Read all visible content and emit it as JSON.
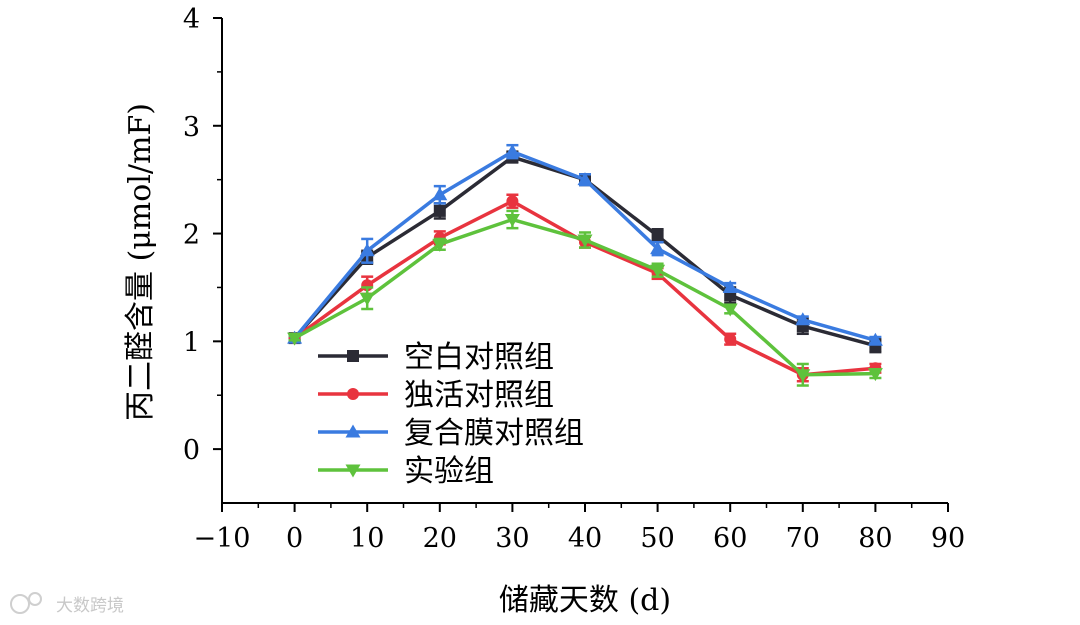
{
  "chart_data": {
    "type": "line",
    "title": "",
    "xlabel": "储藏天数 (d)",
    "ylabel": "丙二醛含量 (μmol/mF)",
    "xlim": [
      -10,
      90
    ],
    "ylim": [
      -0.5,
      4
    ],
    "xticks": [
      "−10",
      "0",
      "10",
      "20",
      "30",
      "40",
      "50",
      "60",
      "70",
      "80",
      "90"
    ],
    "yticks": [
      "0",
      "1",
      "2",
      "3",
      "4"
    ],
    "grid": false,
    "legend_position": "bottom-left",
    "x": [
      0,
      10,
      20,
      30,
      40,
      50,
      60,
      70,
      80
    ],
    "series": [
      {
        "name": "空白对照组",
        "marker": "square",
        "color": "#2b2b35",
        "values": [
          1.03,
          1.78,
          2.21,
          2.71,
          2.5,
          1.98,
          1.43,
          1.14,
          0.96
        ],
        "errors": [
          0.02,
          0.06,
          0.07,
          0.05,
          0.05,
          0.06,
          0.07,
          0.07,
          0.06
        ]
      },
      {
        "name": "独活对照组",
        "marker": "circle",
        "color": "#e8343f",
        "values": [
          1.03,
          1.52,
          1.96,
          2.3,
          1.92,
          1.63,
          1.02,
          0.69,
          0.75
        ],
        "errors": [
          0.02,
          0.08,
          0.06,
          0.06,
          0.05,
          0.05,
          0.05,
          0.06,
          0.04
        ]
      },
      {
        "name": "复合膜对照组",
        "marker": "triangle-up",
        "color": "#3a7be0",
        "values": [
          1.03,
          1.84,
          2.36,
          2.76,
          2.5,
          1.86,
          1.5,
          1.2,
          1.01
        ],
        "errors": [
          0.02,
          0.11,
          0.08,
          0.06,
          0.05,
          0.06,
          0.04,
          0.03,
          0.03
        ]
      },
      {
        "name": "实验组",
        "marker": "triangle-down",
        "color": "#5ec23c",
        "values": [
          1.03,
          1.4,
          1.9,
          2.13,
          1.94,
          1.66,
          1.3,
          0.69,
          0.7
        ],
        "errors": [
          0.02,
          0.1,
          0.05,
          0.08,
          0.07,
          0.06,
          0.04,
          0.1,
          0.04
        ]
      }
    ]
  },
  "watermark": {
    "text": "大数跨境"
  }
}
